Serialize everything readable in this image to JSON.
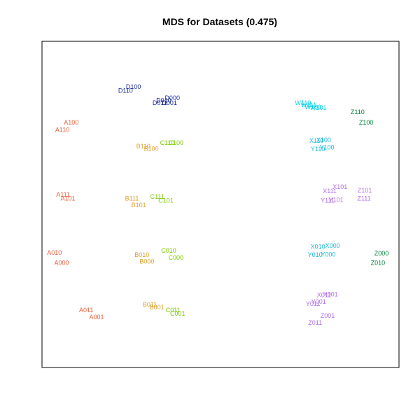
{
  "chart_data": {
    "type": "scatter",
    "title": "MDS for Datasets (0.475)",
    "xlabel": "",
    "ylabel": "",
    "axes_visible": false,
    "grid": false,
    "xlim": [
      0,
      100
    ],
    "ylim": [
      0,
      100
    ],
    "colors": {
      "A": "#e8603c",
      "B": "#e0a030",
      "C": "#7acc00",
      "D": "#1a2a99",
      "W": "#00d0e8",
      "X": "#1ab8d8",
      "Y": "#b070e8",
      "Z": "#00803c"
    },
    "points": [
      {
        "label": "D100",
        "group": "D",
        "x": 25.6,
        "y": 86.0
      },
      {
        "label": "D110",
        "group": "D",
        "x": 23.4,
        "y": 84.9
      },
      {
        "label": "D000",
        "group": "D",
        "x": 36.5,
        "y": 82.6
      },
      {
        "label": "D010",
        "group": "D",
        "x": 34.1,
        "y": 81.9
      },
      {
        "label": "D011",
        "group": "D",
        "x": 33.0,
        "y": 81.1
      },
      {
        "label": "D001",
        "group": "D",
        "x": 35.7,
        "y": 81.1
      },
      {
        "label": "A100",
        "group": "A",
        "x": 8.2,
        "y": 75.1
      },
      {
        "label": "A110",
        "group": "A",
        "x": 5.7,
        "y": 72.9
      },
      {
        "label": "B110",
        "group": "B",
        "x": 28.4,
        "y": 67.8
      },
      {
        "label": "B100",
        "group": "B",
        "x": 30.6,
        "y": 67.1
      },
      {
        "label": "C110",
        "group": "C",
        "x": 35.1,
        "y": 68.9
      },
      {
        "label": "C100",
        "group": "C",
        "x": 37.5,
        "y": 68.9
      },
      {
        "label": "A111",
        "group": "A",
        "x": 5.9,
        "y": 53.0
      },
      {
        "label": "A101",
        "group": "A",
        "x": 7.3,
        "y": 51.8
      },
      {
        "label": "C111",
        "group": "C",
        "x": 32.3,
        "y": 52.4
      },
      {
        "label": "C101",
        "group": "C",
        "x": 34.7,
        "y": 51.2
      },
      {
        "label": "B111",
        "group": "B",
        "x": 25.2,
        "y": 51.8
      },
      {
        "label": "B101",
        "group": "B",
        "x": 27.1,
        "y": 49.8
      },
      {
        "label": "A010",
        "group": "A",
        "x": 3.5,
        "y": 35.2
      },
      {
        "label": "A000",
        "group": "A",
        "x": 5.5,
        "y": 32.1
      },
      {
        "label": "C010",
        "group": "C",
        "x": 35.5,
        "y": 35.8
      },
      {
        "label": "C000",
        "group": "C",
        "x": 37.5,
        "y": 33.7
      },
      {
        "label": "B010",
        "group": "B",
        "x": 28.0,
        "y": 34.5
      },
      {
        "label": "B000",
        "group": "B",
        "x": 29.4,
        "y": 32.5
      },
      {
        "label": "A011",
        "group": "A",
        "x": 12.4,
        "y": 17.6
      },
      {
        "label": "A001",
        "group": "A",
        "x": 15.3,
        "y": 15.5
      },
      {
        "label": "B011",
        "group": "B",
        "x": 30.2,
        "y": 19.3
      },
      {
        "label": "B001",
        "group": "B",
        "x": 32.2,
        "y": 18.5
      },
      {
        "label": "C011",
        "group": "C",
        "x": 36.7,
        "y": 17.6
      },
      {
        "label": "C001",
        "group": "C",
        "x": 38.0,
        "y": 16.5
      },
      {
        "label": "W110",
        "group": "W",
        "x": 73.1,
        "y": 81.1
      },
      {
        "label": "W111",
        "group": "W",
        "x": 74.7,
        "y": 80.5
      },
      {
        "label": "W100",
        "group": "W",
        "x": 75.9,
        "y": 79.8
      },
      {
        "label": "W101",
        "group": "W",
        "x": 77.4,
        "y": 79.6
      },
      {
        "label": "Z110",
        "group": "Z",
        "x": 88.4,
        "y": 78.3
      },
      {
        "label": "Z100",
        "group": "Z",
        "x": 90.8,
        "y": 75.1
      },
      {
        "label": "X110",
        "group": "X",
        "x": 76.9,
        "y": 69.5
      },
      {
        "label": "X100",
        "group": "X",
        "x": 78.9,
        "y": 69.7
      },
      {
        "label": "Y110",
        "group": "X",
        "x": 77.3,
        "y": 66.9
      },
      {
        "label": "Y100",
        "group": "X",
        "x": 79.8,
        "y": 67.5
      },
      {
        "label": "X111",
        "group": "Y",
        "x": 80.6,
        "y": 54.1
      },
      {
        "label": "X101",
        "group": "Y",
        "x": 83.5,
        "y": 55.4
      },
      {
        "label": "Z101",
        "group": "Y",
        "x": 90.4,
        "y": 54.3
      },
      {
        "label": "Z111",
        "group": "Y",
        "x": 90.2,
        "y": 51.8
      },
      {
        "label": "Y111",
        "group": "Y",
        "x": 80.0,
        "y": 51.2
      },
      {
        "label": "Y101",
        "group": "Y",
        "x": 82.4,
        "y": 51.4
      },
      {
        "label": "X010",
        "group": "X",
        "x": 77.3,
        "y": 37.0
      },
      {
        "label": "X000",
        "group": "X",
        "x": 81.4,
        "y": 37.3
      },
      {
        "label": "Y010",
        "group": "X",
        "x": 76.5,
        "y": 34.5
      },
      {
        "label": "Y000",
        "group": "X",
        "x": 80.2,
        "y": 34.7
      },
      {
        "label": "Z000",
        "group": "Z",
        "x": 95.1,
        "y": 35.0
      },
      {
        "label": "Z010",
        "group": "Z",
        "x": 94.1,
        "y": 32.1
      },
      {
        "label": "X011",
        "group": "Y",
        "x": 79.0,
        "y": 22.2
      },
      {
        "label": "X001",
        "group": "Y",
        "x": 80.8,
        "y": 22.4
      },
      {
        "label": "Y011",
        "group": "Y",
        "x": 75.9,
        "y": 19.5
      },
      {
        "label": "Y001",
        "group": "Y",
        "x": 77.5,
        "y": 20.2
      },
      {
        "label": "Z001",
        "group": "Y",
        "x": 80.0,
        "y": 15.9
      },
      {
        "label": "Z011",
        "group": "Y",
        "x": 76.5,
        "y": 13.7
      }
    ]
  }
}
